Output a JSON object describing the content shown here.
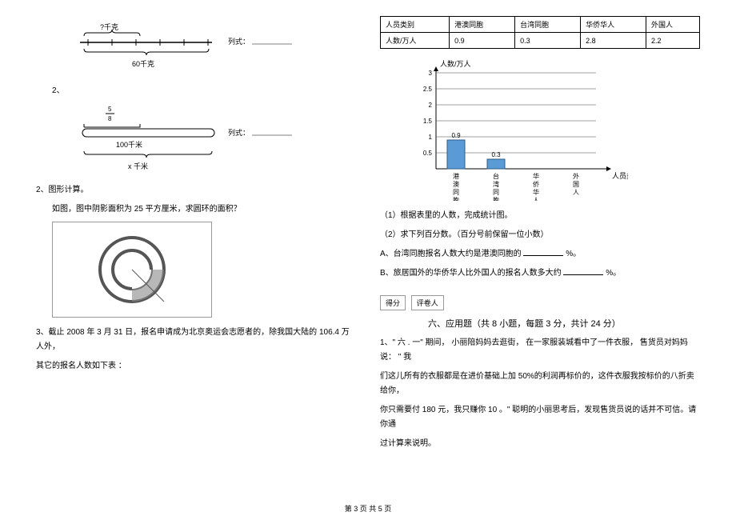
{
  "left": {
    "diagram1": {
      "top_label": "?千克",
      "bottom_label": "60千克",
      "formula_label": "列式："
    },
    "item2_number": "2、",
    "diagram2": {
      "frac_top": "5",
      "frac_bottom": "8",
      "mid_label": "100千米",
      "bottom_label": "x 千米",
      "formula_label": "列式："
    },
    "q2_heading": "2、图形计算。",
    "q2_text_a": "如图，图中阴影面积为",
    "q2_text_b": "25 平方厘米，求圆环的面积？",
    "q3_text_a": "3、截止",
    "q3_text_b": "2008 年 3 月 31 日，报名申请成为北京奥运会志愿者的，除我国大陆的",
    "q3_text_c": "106.4 万人外，",
    "q3_text_d": "其它的报名人数如下表",
    "q3_colon": "："
  },
  "right": {
    "table": {
      "headers": [
        "人员类别",
        "港澳同胞",
        "台湾同胞",
        "华侨华人",
        "外国人"
      ],
      "row_label": "人数/万人",
      "values": [
        "0.9",
        "0.3",
        "2.8",
        "2.2"
      ]
    },
    "chart": {
      "y_label": "人数/万人",
      "x_label": "人员类别",
      "y_ticks": [
        "0.5",
        "1",
        "1.5",
        "2",
        "2.5",
        "3"
      ],
      "categories": [
        "港澳同胞",
        "台湾同胞",
        "华侨华人",
        "外国人"
      ],
      "bars": [
        {
          "value": 0.9,
          "label": "0.9"
        },
        {
          "value": 0.3,
          "label": "0.3"
        }
      ],
      "y_max": 3.0,
      "bar_color": "#5b9bd5"
    },
    "sub1": "（1）根据表里的人数，完成统计图。",
    "sub2": "（2）求下列百分数。（百分号前保留一位小数）",
    "subA_a": "A、台湾同胞报名人数大约是港澳同胞的",
    "subA_b": "%。",
    "subB_a": "B、旅居国外的华侨华人比外国人的报名人数多大约",
    "subB_b": "%。",
    "score_label": "得分",
    "grader_label": "评卷人",
    "section6_title": "六、应用题（共  8 小题，每题  3 分，共计  24 分）",
    "app_q1_a": "1、\" 六 . 一\" 期间， 小丽陪妈妈去逛街，",
    "app_q1_b": "在一家服装城看中了一件衣服，",
    "app_q1_c": "售货员对妈妈说：",
    "app_q1_d": "\" 我",
    "app_q1_e": "们这儿所有的衣服都是在进价基础上加",
    "app_q1_f": "50%的利润再标价的，这件衣服我按标价的八折卖给你，",
    "app_q1_g": "你只需要付",
    "app_q1_h": "180  元，我只赚你",
    "app_q1_i": "10 。\" 聪明的小丽思考后，发现售货员说的话并不可信。请你通",
    "app_q1_j": "过计算来说明。"
  },
  "footer": "第  3 页 共  5 页"
}
